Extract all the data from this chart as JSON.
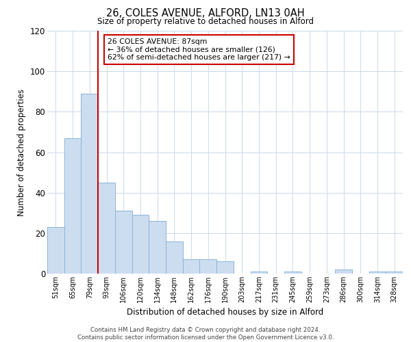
{
  "title": "26, COLES AVENUE, ALFORD, LN13 0AH",
  "subtitle": "Size of property relative to detached houses in Alford",
  "xlabel": "Distribution of detached houses by size in Alford",
  "ylabel": "Number of detached properties",
  "bar_labels": [
    "51sqm",
    "65sqm",
    "79sqm",
    "93sqm",
    "106sqm",
    "120sqm",
    "134sqm",
    "148sqm",
    "162sqm",
    "176sqm",
    "190sqm",
    "203sqm",
    "217sqm",
    "231sqm",
    "245sqm",
    "259sqm",
    "273sqm",
    "286sqm",
    "300sqm",
    "314sqm",
    "328sqm"
  ],
  "bar_values": [
    23,
    67,
    89,
    45,
    31,
    29,
    26,
    16,
    7,
    7,
    6,
    0,
    1,
    0,
    1,
    0,
    0,
    2,
    0,
    1,
    1
  ],
  "bar_color": "#ccddf0",
  "bar_edgecolor": "#8ab4d8",
  "vline_color": "#cc0000",
  "vline_x_index": 2.5,
  "annotation_text": "26 COLES AVENUE: 87sqm\n← 36% of detached houses are smaller (126)\n62% of semi-detached houses are larger (217) →",
  "annotation_box_edgecolor": "#cc0000",
  "annotation_box_facecolor": "#ffffff",
  "ylim": [
    0,
    120
  ],
  "yticks": [
    0,
    20,
    40,
    60,
    80,
    100,
    120
  ],
  "footer_text": "Contains HM Land Registry data © Crown copyright and database right 2024.\nContains public sector information licensed under the Open Government Licence v3.0.",
  "background_color": "#ffffff",
  "grid_color": "#ccd8e8"
}
